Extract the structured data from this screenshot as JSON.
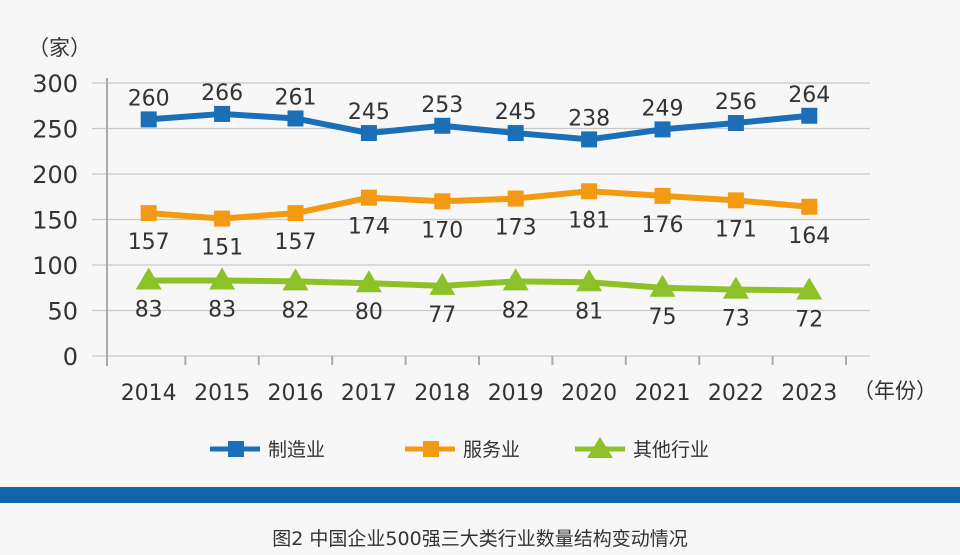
{
  "chart_data": {
    "type": "line",
    "ylabel": "（家）",
    "xlabel": "（年份）",
    "ylim": [
      0,
      300
    ],
    "yticks": [
      0,
      50,
      100,
      150,
      200,
      250,
      300
    ],
    "grid": true,
    "legend_position": "bottom",
    "categories": [
      "2014",
      "2015",
      "2016",
      "2017",
      "2018",
      "2019",
      "2020",
      "2021",
      "2022",
      "2023"
    ],
    "series": [
      {
        "name": "制造业",
        "color": "#1a6fb8",
        "marker": "square",
        "label_position": "above",
        "values": [
          260,
          266,
          261,
          245,
          253,
          245,
          238,
          249,
          256,
          264
        ]
      },
      {
        "name": "服务业",
        "color": "#f39a12",
        "marker": "square",
        "label_position": "below",
        "values": [
          157,
          151,
          157,
          174,
          170,
          173,
          181,
          176,
          171,
          164
        ]
      },
      {
        "name": "其他行业",
        "color": "#8cc227",
        "marker": "triangle",
        "label_position": "below",
        "values": [
          83,
          83,
          82,
          80,
          77,
          82,
          81,
          75,
          73,
          72
        ]
      }
    ]
  },
  "caption": "图2   中国企业500强三大类行业数量结构变动情况"
}
